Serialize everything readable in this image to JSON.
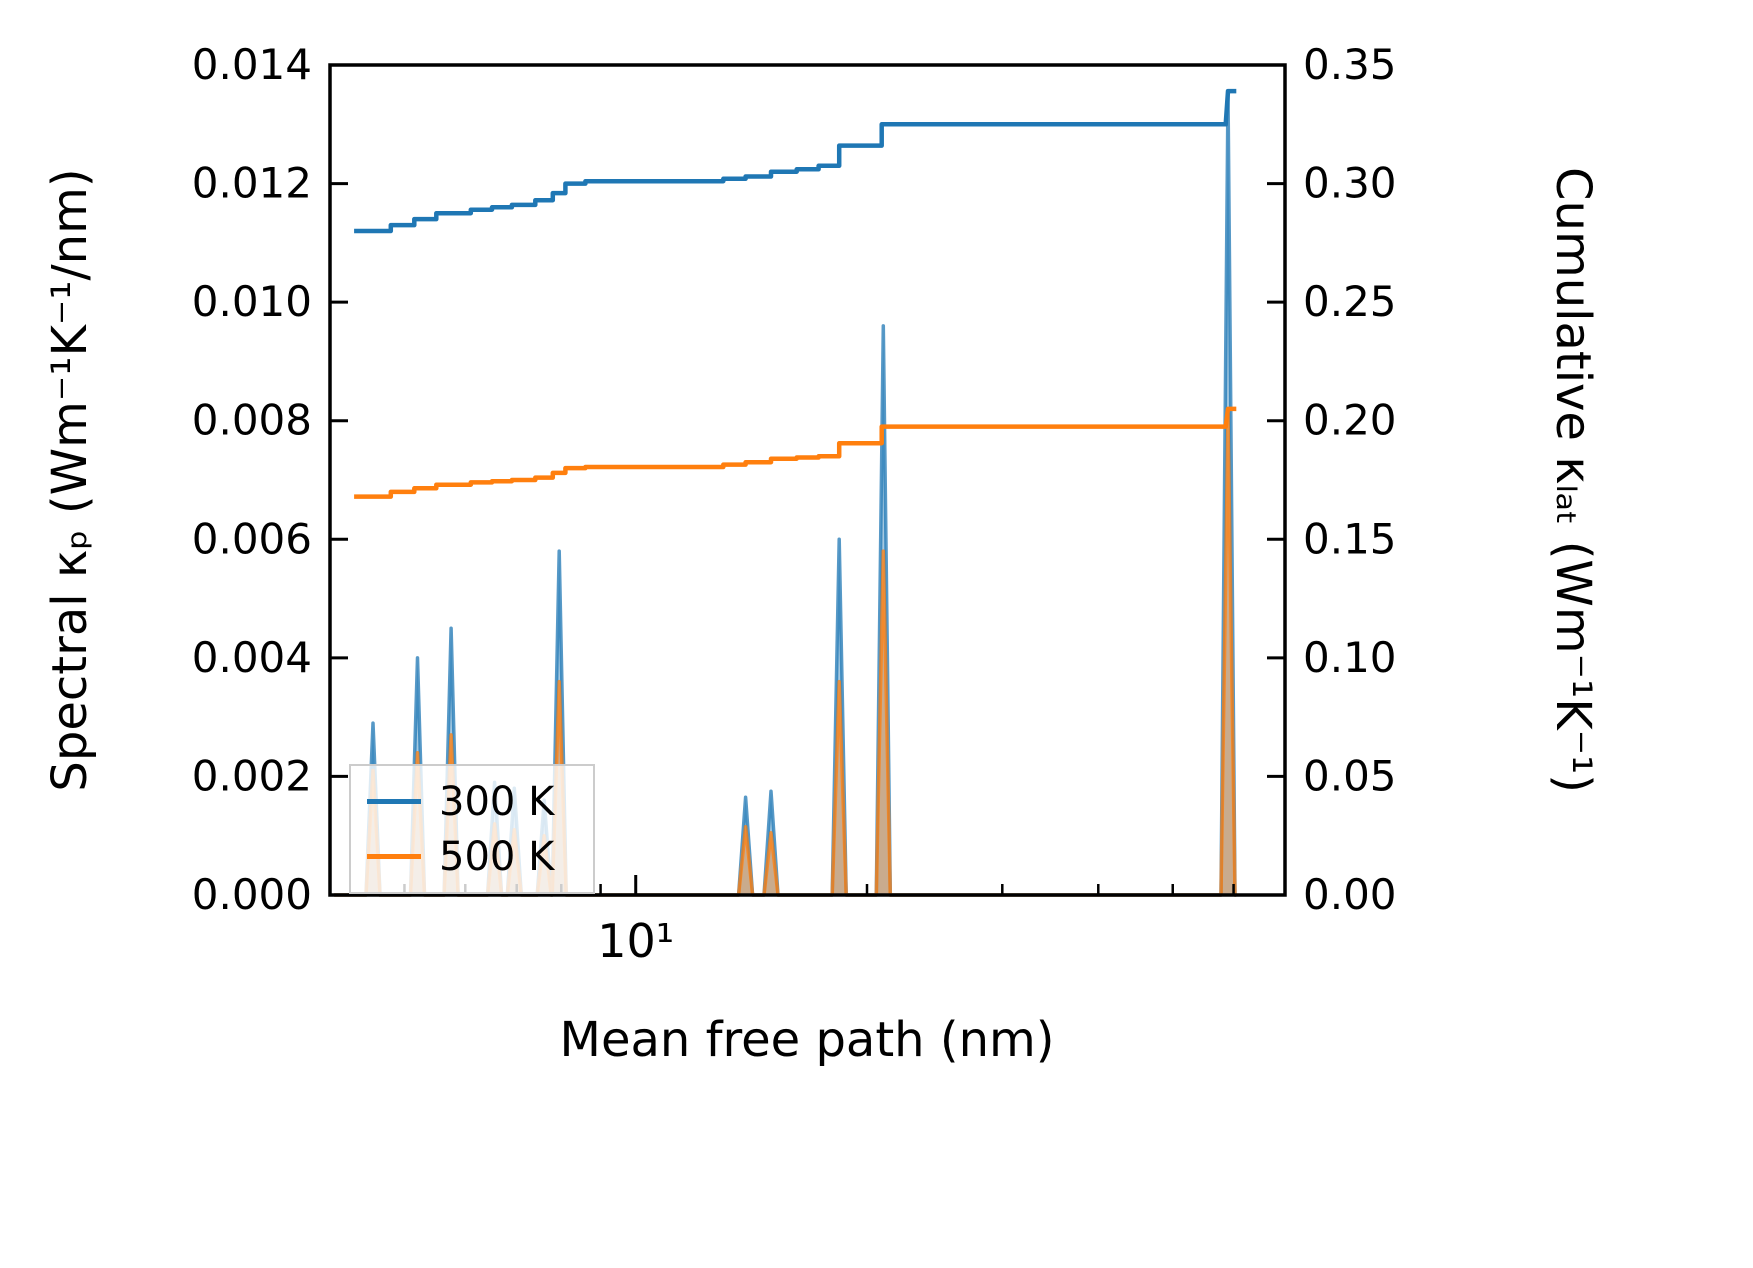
{
  "chart_data": {
    "type": "line",
    "title": "",
    "xlabel": "Mean free path (nm)",
    "ylabel_left": "Spectral κₚ (Wm⁻¹K⁻¹/nm)",
    "ylabel_right": "Cumulative κₗₐₜ (Wm⁻¹K⁻¹)",
    "x_scale": "log",
    "x_range": [
      4.0,
      70
    ],
    "x_major_ticks": [
      {
        "value": 10,
        "label": "10¹"
      }
    ],
    "x_minor_ticks": [
      5,
      6,
      7,
      8,
      9,
      20,
      30,
      40,
      50,
      60
    ],
    "y_left": {
      "range": [
        0,
        0.014
      ],
      "ticks": [
        {
          "value": 0.0,
          "label": "0.000"
        },
        {
          "value": 0.002,
          "label": "0.002"
        },
        {
          "value": 0.004,
          "label": "0.004"
        },
        {
          "value": 0.006,
          "label": "0.006"
        },
        {
          "value": 0.008,
          "label": "0.008"
        },
        {
          "value": 0.01,
          "label": "0.010"
        },
        {
          "value": 0.012,
          "label": "0.012"
        },
        {
          "value": 0.014,
          "label": "0.014"
        }
      ]
    },
    "y_right": {
      "range": [
        0,
        0.35
      ],
      "ticks": [
        {
          "value": 0.0,
          "label": "0.00"
        },
        {
          "value": 0.05,
          "label": "0.05"
        },
        {
          "value": 0.1,
          "label": "0.10"
        },
        {
          "value": 0.15,
          "label": "0.15"
        },
        {
          "value": 0.2,
          "label": "0.20"
        },
        {
          "value": 0.25,
          "label": "0.25"
        },
        {
          "value": 0.3,
          "label": "0.30"
        },
        {
          "value": 0.35,
          "label": "0.35"
        }
      ]
    },
    "legend": {
      "position": "lower left",
      "entries": [
        {
          "label": "300 K",
          "color": "#1f77b4"
        },
        {
          "label": "500 K",
          "color": "#ff7f0e"
        }
      ]
    },
    "series": [
      {
        "name": "300 K spectral",
        "style": "spikes",
        "axis": "left",
        "color": "#1f77b4",
        "x_start": 4.05,
        "x_end": 60.5,
        "peaks": [
          [
            4.55,
            0.0029
          ],
          [
            5.2,
            0.004
          ],
          [
            5.75,
            0.0045
          ],
          [
            6.55,
            0.0019
          ],
          [
            6.95,
            0.0018
          ],
          [
            7.6,
            0.0016
          ],
          [
            7.95,
            0.0058
          ],
          [
            13.9,
            0.00165
          ],
          [
            15.0,
            0.00175
          ],
          [
            18.4,
            0.006
          ],
          [
            21.0,
            0.0096
          ],
          [
            59.0,
            0.01355
          ]
        ]
      },
      {
        "name": "500 K spectral",
        "style": "spikes",
        "axis": "left",
        "color": "#ff7f0e",
        "x_start": 4.05,
        "x_end": 60.5,
        "peaks": [
          [
            4.55,
            0.0021
          ],
          [
            5.2,
            0.0024
          ],
          [
            5.75,
            0.0027
          ],
          [
            6.55,
            0.0012
          ],
          [
            6.95,
            0.0011
          ],
          [
            7.6,
            0.001
          ],
          [
            7.95,
            0.0036
          ],
          [
            13.9,
            0.00115
          ],
          [
            15.0,
            0.00105
          ],
          [
            18.4,
            0.0036
          ],
          [
            21.0,
            0.0058
          ],
          [
            59.0,
            0.0081
          ]
        ]
      },
      {
        "name": "300 K cumulative",
        "style": "step",
        "axis": "right",
        "color": "#1f77b4",
        "points": [
          [
            4.3,
            0.28
          ],
          [
            4.8,
            0.28
          ],
          [
            4.8,
            0.2825
          ],
          [
            5.15,
            0.2825
          ],
          [
            5.15,
            0.285
          ],
          [
            5.5,
            0.285
          ],
          [
            5.5,
            0.2875
          ],
          [
            6.1,
            0.2875
          ],
          [
            6.1,
            0.289
          ],
          [
            6.5,
            0.289
          ],
          [
            6.5,
            0.29
          ],
          [
            6.9,
            0.29
          ],
          [
            6.9,
            0.291
          ],
          [
            7.4,
            0.291
          ],
          [
            7.4,
            0.293
          ],
          [
            7.8,
            0.293
          ],
          [
            7.8,
            0.296
          ],
          [
            8.1,
            0.296
          ],
          [
            8.1,
            0.3
          ],
          [
            8.6,
            0.3
          ],
          [
            8.6,
            0.301
          ],
          [
            13.0,
            0.301
          ],
          [
            13.0,
            0.302
          ],
          [
            13.9,
            0.302
          ],
          [
            13.9,
            0.303
          ],
          [
            15.0,
            0.303
          ],
          [
            15.0,
            0.305
          ],
          [
            16.2,
            0.305
          ],
          [
            16.2,
            0.306
          ],
          [
            17.3,
            0.306
          ],
          [
            17.3,
            0.3075
          ],
          [
            18.4,
            0.3075
          ],
          [
            18.4,
            0.316
          ],
          [
            20.9,
            0.316
          ],
          [
            20.9,
            0.325
          ],
          [
            58.6,
            0.325
          ],
          [
            59.0,
            0.339
          ],
          [
            60.5,
            0.339
          ]
        ]
      },
      {
        "name": "500 K cumulative",
        "style": "step",
        "axis": "right",
        "color": "#ff7f0e",
        "points": [
          [
            4.3,
            0.168
          ],
          [
            4.8,
            0.168
          ],
          [
            4.8,
            0.17
          ],
          [
            5.15,
            0.17
          ],
          [
            5.15,
            0.1715
          ],
          [
            5.5,
            0.1715
          ],
          [
            5.5,
            0.173
          ],
          [
            6.1,
            0.173
          ],
          [
            6.1,
            0.174
          ],
          [
            6.5,
            0.174
          ],
          [
            6.5,
            0.1745
          ],
          [
            6.9,
            0.1745
          ],
          [
            6.9,
            0.175
          ],
          [
            7.4,
            0.175
          ],
          [
            7.4,
            0.176
          ],
          [
            7.8,
            0.176
          ],
          [
            7.8,
            0.178
          ],
          [
            8.1,
            0.178
          ],
          [
            8.1,
            0.18
          ],
          [
            8.6,
            0.18
          ],
          [
            8.6,
            0.1805
          ],
          [
            13.0,
            0.1805
          ],
          [
            13.0,
            0.1815
          ],
          [
            13.9,
            0.1815
          ],
          [
            13.9,
            0.1825
          ],
          [
            15.0,
            0.1825
          ],
          [
            15.0,
            0.184
          ],
          [
            16.2,
            0.184
          ],
          [
            16.2,
            0.1845
          ],
          [
            17.3,
            0.1845
          ],
          [
            17.3,
            0.185
          ],
          [
            18.4,
            0.185
          ],
          [
            18.4,
            0.1905
          ],
          [
            20.9,
            0.1905
          ],
          [
            20.9,
            0.1975
          ],
          [
            58.6,
            0.1975
          ],
          [
            59.0,
            0.205
          ],
          [
            60.5,
            0.205
          ]
        ]
      }
    ]
  }
}
